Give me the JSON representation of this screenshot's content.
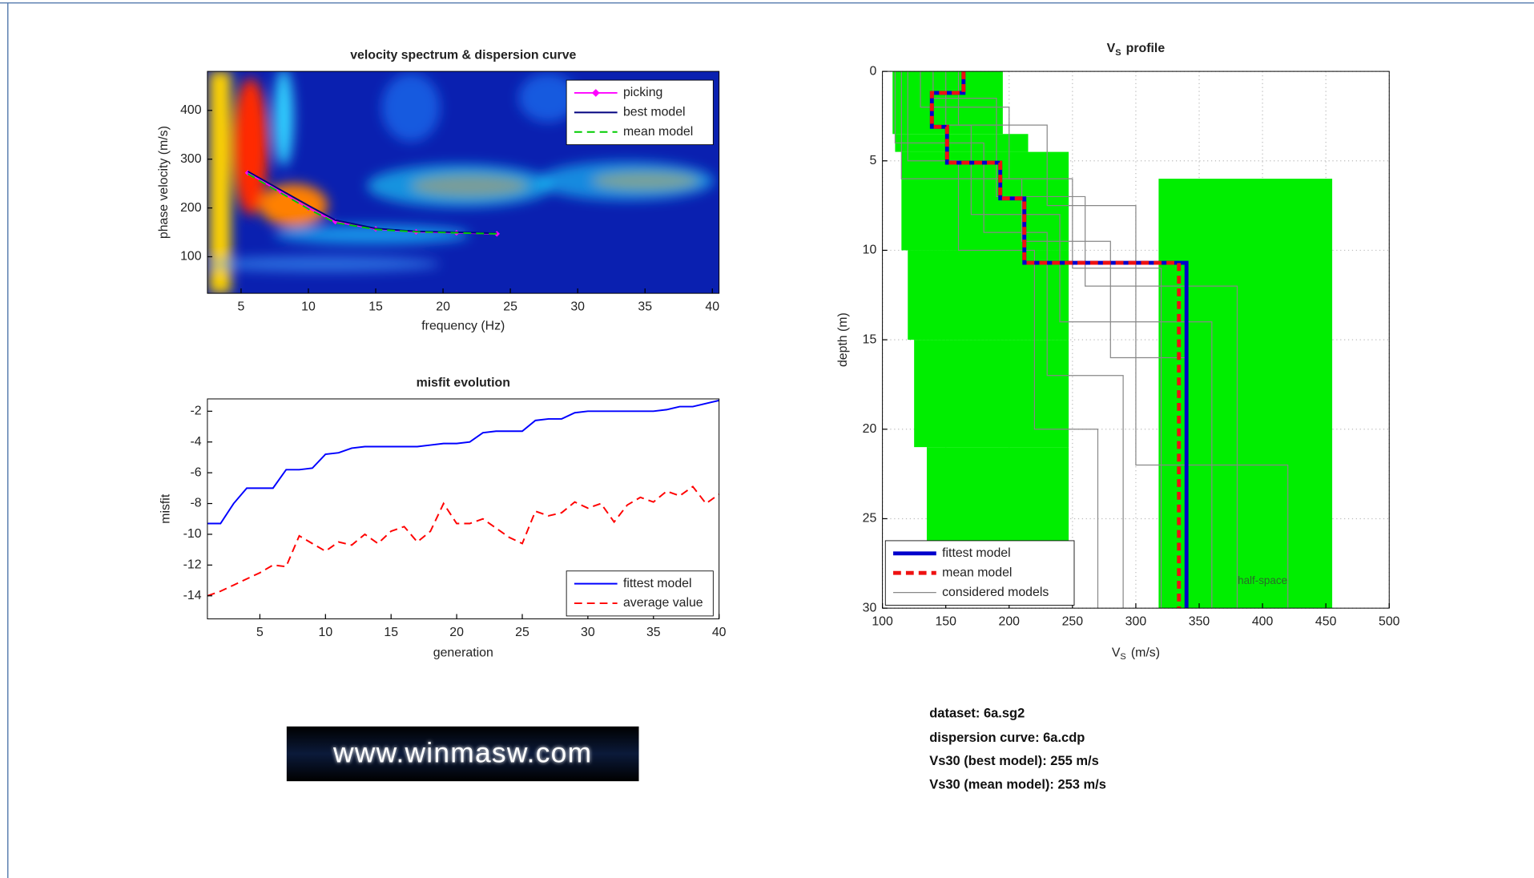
{
  "chart_data": [
    {
      "type": "line",
      "title": "velocity spectrum & dispersion curve",
      "xlabel": "frequency (Hz)",
      "ylabel": "phase velocity (m/s)",
      "xlim": [
        2.5,
        40.5
      ],
      "ylim": [
        25,
        480
      ],
      "xticks": [
        5,
        10,
        15,
        20,
        25,
        30,
        35,
        40
      ],
      "yticks": [
        100,
        200,
        300,
        400
      ],
      "legend": "upper right",
      "series": [
        {
          "name": "picking",
          "color": "#ff00ff",
          "marker": "diamond",
          "style": "solid",
          "x": [
            5.5,
            8,
            10,
            12,
            15,
            18,
            21,
            24
          ],
          "values": [
            272,
            232,
            200,
            172,
            157,
            151,
            149,
            147
          ]
        },
        {
          "name": "best model",
          "color": "#00007f",
          "style": "solid",
          "x": [
            5.5,
            8,
            10,
            12,
            15,
            18,
            21,
            24
          ],
          "values": [
            275,
            236,
            205,
            175,
            158,
            152,
            150,
            148
          ]
        },
        {
          "name": "mean model",
          "color": "#00cc00",
          "style": "dashed",
          "x": [
            5.5,
            8,
            10,
            12,
            15,
            18,
            21,
            24
          ],
          "values": [
            270,
            230,
            198,
            170,
            156,
            151,
            149,
            147
          ]
        }
      ]
    },
    {
      "type": "line",
      "title": "misfit evolution",
      "xlabel": "generation",
      "ylabel": "misfit",
      "xlim": [
        1,
        40
      ],
      "ylim": [
        -15.5,
        -1.2
      ],
      "xticks": [
        5,
        10,
        15,
        20,
        25,
        30,
        35,
        40
      ],
      "yticks": [
        -2,
        -4,
        -6,
        -8,
        -10,
        -12,
        -14
      ],
      "legend": "lower right",
      "series": [
        {
          "name": "fittest model",
          "color": "#0000ff",
          "style": "solid",
          "x": [
            1,
            2,
            3,
            4,
            5,
            6,
            7,
            8,
            9,
            10,
            11,
            12,
            13,
            14,
            15,
            16,
            17,
            18,
            19,
            20,
            21,
            22,
            23,
            24,
            25,
            26,
            27,
            28,
            29,
            30,
            31,
            32,
            33,
            34,
            35,
            36,
            37,
            38,
            39,
            40
          ],
          "values": [
            -9.3,
            -9.3,
            -8.0,
            -7.0,
            -7.0,
            -7.0,
            -5.8,
            -5.8,
            -5.7,
            -4.8,
            -4.7,
            -4.4,
            -4.3,
            -4.3,
            -4.3,
            -4.3,
            -4.3,
            -4.2,
            -4.1,
            -4.1,
            -4.0,
            -3.4,
            -3.3,
            -3.3,
            -3.3,
            -2.6,
            -2.5,
            -2.5,
            -2.1,
            -2.0,
            -2.0,
            -2.0,
            -2.0,
            -2.0,
            -2.0,
            -1.9,
            -1.7,
            -1.7,
            -1.5,
            -1.3
          ]
        },
        {
          "name": "average value",
          "color": "#ff0000",
          "style": "dashed",
          "x": [
            1,
            2,
            3,
            4,
            5,
            6,
            7,
            8,
            9,
            10,
            11,
            12,
            13,
            14,
            15,
            16,
            17,
            18,
            19,
            20,
            21,
            22,
            23,
            24,
            25,
            26,
            27,
            28,
            29,
            30,
            31,
            32,
            33,
            34,
            35,
            36,
            37,
            38,
            39,
            40
          ],
          "values": [
            -14,
            -13.7,
            -13.3,
            -12.9,
            -12.5,
            -12.0,
            -12.1,
            -10.1,
            -10.6,
            -11.1,
            -10.5,
            -10.7,
            -10.0,
            -10.6,
            -9.8,
            -9.5,
            -10.5,
            -9.8,
            -8.0,
            -9.3,
            -9.3,
            -9.0,
            -9.6,
            -10.2,
            -10.6,
            -8.5,
            -8.8,
            -8.6,
            -7.9,
            -8.3,
            -8.0,
            -9.2,
            -8.1,
            -7.6,
            -7.9,
            -7.2,
            -7.5,
            -6.9,
            -8.0,
            -7.4
          ]
        }
      ]
    },
    {
      "type": "profile",
      "title": "V",
      "title_sub": "S",
      "title_rest": "profile",
      "xlabel": "V",
      "xlabel_sub": "S",
      "xlabel_rest": "(m/s)",
      "ylabel": "depth (m)",
      "xlim": [
        100,
        500
      ],
      "ylim": [
        0,
        30
      ],
      "reverse_y": true,
      "grid": true,
      "legend": "lower left",
      "xticks": [
        100,
        150,
        200,
        250,
        300,
        350,
        400,
        450,
        500
      ],
      "yticks": [
        0,
        5,
        10,
        15,
        20,
        25,
        30
      ],
      "search_space": {
        "color": "#00ee00",
        "layers": [
          {
            "vs": [
              108,
              195
            ],
            "depth": [
              0,
              3.5
            ]
          },
          {
            "vs": [
              110,
              215
            ],
            "depth": [
              3.5,
              4.5
            ]
          },
          {
            "vs": [
              115,
              247
            ],
            "depth": [
              4.5,
              10
            ]
          },
          {
            "vs": [
              120,
              247
            ],
            "depth": [
              10,
              15
            ]
          },
          {
            "vs": [
              125,
              247
            ],
            "depth": [
              15,
              21
            ]
          },
          {
            "vs": [
              135,
              247
            ],
            "depth": [
              21,
              26.5
            ]
          },
          {
            "vs": [
              318,
              455
            ],
            "depth": [
              6,
              30
            ]
          }
        ]
      },
      "annotation": {
        "text": "half-space",
        "x": 400,
        "y": 28.5
      },
      "series": [
        {
          "name": "fittest model",
          "color": "#0000cc",
          "style": "solid",
          "width": 4,
          "x": [
            164,
            164,
            139,
            139,
            151,
            151,
            193,
            193,
            212,
            212,
            340,
            340
          ],
          "values": [
            0,
            1.2,
            1.2,
            3.1,
            3.1,
            5.1,
            5.1,
            7.1,
            7.1,
            10.7,
            10.7,
            30
          ]
        },
        {
          "name": "mean model",
          "color": "#ee1111",
          "style": "dashed",
          "width": 4,
          "x": [
            164,
            164,
            139,
            139,
            151,
            151,
            193,
            193,
            212,
            212,
            334,
            334
          ],
          "values": [
            0,
            1.2,
            1.2,
            3.1,
            3.1,
            5.1,
            5.1,
            7.1,
            7.1,
            10.7,
            10.7,
            30
          ]
        },
        {
          "name": "considered models",
          "color": "#888888",
          "style": "solid",
          "width": 1,
          "models": [
            {
              "x": [
                110,
                110,
                180,
                180,
                230,
                230,
                290,
                290
              ],
              "values": [
                0,
                4,
                4,
                9,
                9,
                17,
                17,
                30
              ]
            },
            {
              "x": [
                130,
                130,
                200,
                200,
                250,
                250,
                320,
                320
              ],
              "values": [
                0,
                2,
                2,
                6,
                6,
                11,
                11,
                30
              ]
            },
            {
              "x": [
                150,
                150,
                170,
                170,
                240,
                240,
                360,
                360
              ],
              "values": [
                0,
                3,
                3,
                8,
                8,
                14,
                14,
                30
              ]
            },
            {
              "x": [
                120,
                120,
                160,
                160,
                220,
                220,
                270,
                270
              ],
              "values": [
                0,
                5,
                5,
                10,
                10,
                20,
                20,
                30
              ]
            },
            {
              "x": [
                140,
                140,
                190,
                190,
                260,
                260,
                380,
                380
              ],
              "values": [
                0,
                1.5,
                1.5,
                7,
                7,
                12,
                12,
                30
              ]
            },
            {
              "x": [
                115,
                115,
                210,
                210,
                280,
                280,
                340,
                340
              ],
              "values": [
                0,
                6,
                6,
                9.5,
                9.5,
                16,
                16,
                30
              ]
            },
            {
              "x": [
                160,
                160,
                230,
                230,
                300,
                300,
                420,
                420
              ],
              "values": [
                0,
                3,
                3,
                7.5,
                7.5,
                22,
                22,
                30
              ]
            }
          ]
        }
      ]
    }
  ],
  "info": [
    "dataset: 6a.sg2",
    "dispersion curve: 6a.cdp",
    "Vs30 (best model): 255 m/s",
    "Vs30 (mean model): 253 m/s"
  ],
  "logo": "www.winmasw.com"
}
